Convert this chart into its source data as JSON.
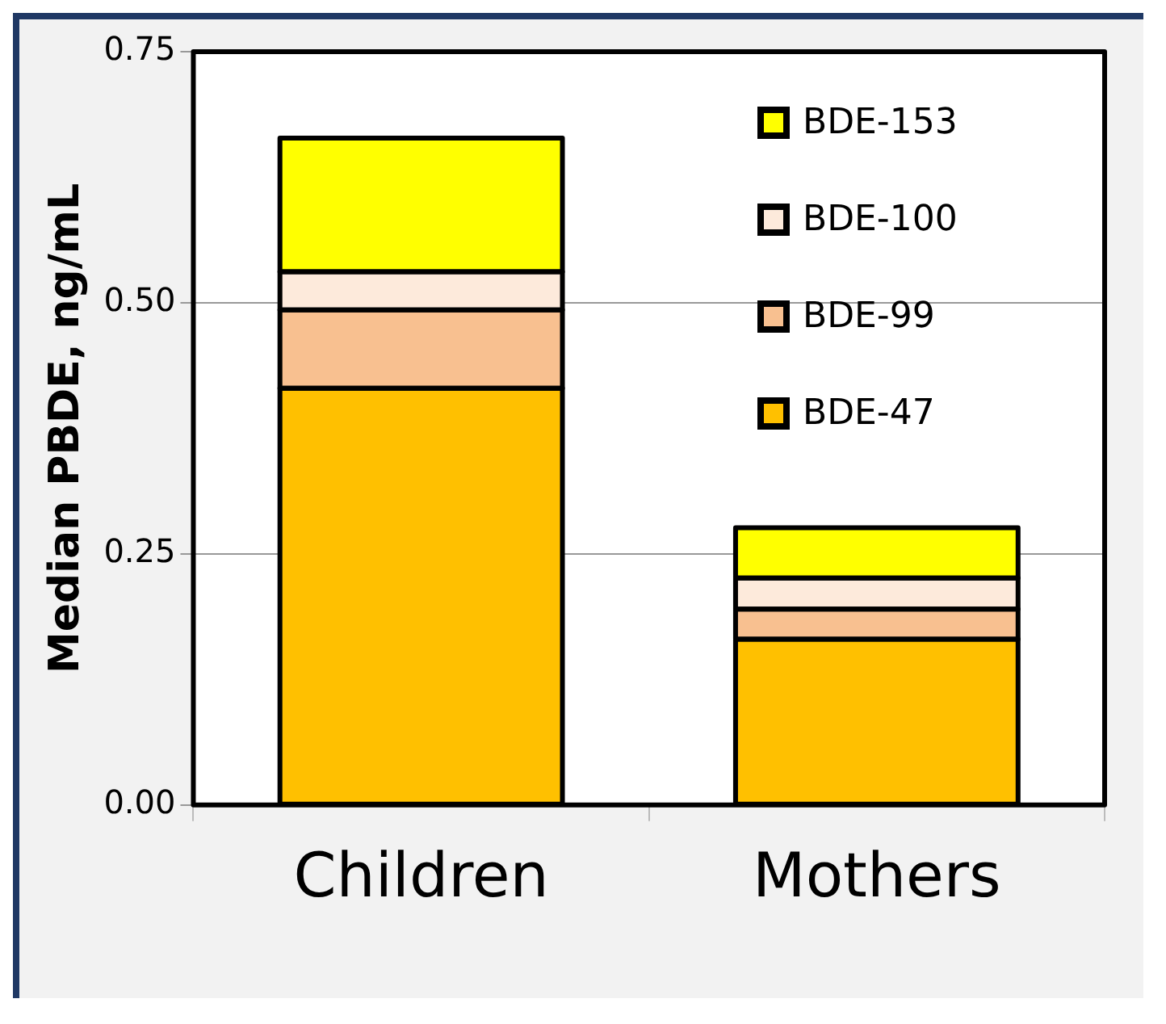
{
  "chart_data": {
    "type": "bar",
    "ylabel": "Median PBDE, ng/mL",
    "categories": [
      "Children",
      "Mothers"
    ],
    "series": [
      {
        "name": "BDE-47",
        "color": "#ffc000",
        "values": [
          0.415,
          0.165
        ]
      },
      {
        "name": "BDE-99",
        "color": "#f8c090",
        "values": [
          0.078,
          0.03
        ]
      },
      {
        "name": "BDE-100",
        "color": "#fdeadb",
        "values": [
          0.038,
          0.031
        ]
      },
      {
        "name": "BDE-153",
        "color": "#ffff00",
        "values": [
          0.133,
          0.05
        ]
      }
    ],
    "stacked": true,
    "ylim": [
      0,
      0.75
    ],
    "yticks": [
      {
        "value": 0,
        "label": "0.00"
      },
      {
        "value": 0.25,
        "label": "0.25"
      },
      {
        "value": 0.5,
        "label": "0.50"
      },
      {
        "value": 0.75,
        "label": "0.75"
      }
    ],
    "grid": "y",
    "legend": "top right"
  }
}
